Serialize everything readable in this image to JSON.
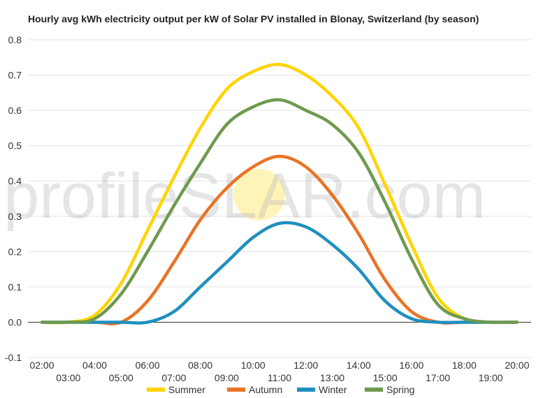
{
  "chart_data": {
    "type": "line",
    "title": "Hourly avg kWh electricity output per kW of Solar PV installed in Blonay, Switzerland (by season)",
    "xlabel": "",
    "ylabel": "",
    "x": [
      "02:00",
      "03:00",
      "04:00",
      "05:00",
      "06:00",
      "07:00",
      "08:00",
      "09:00",
      "10:00",
      "11:00",
      "12:00",
      "13:00",
      "14:00",
      "15:00",
      "16:00",
      "17:00",
      "18:00",
      "19:00",
      "20:00"
    ],
    "ylim": [
      -0.1,
      0.8
    ],
    "yticks": [
      -0.1,
      0.0,
      0.1,
      0.2,
      0.3,
      0.4,
      0.5,
      0.6,
      0.7,
      0.8
    ],
    "grid": true,
    "legend_position": "bottom",
    "series": [
      {
        "name": "Summer",
        "color": "#FFD400",
        "values": [
          0.0,
          0.0,
          0.02,
          0.11,
          0.26,
          0.41,
          0.55,
          0.66,
          0.71,
          0.73,
          0.7,
          0.64,
          0.55,
          0.39,
          0.22,
          0.07,
          0.01,
          0.0,
          0.0
        ]
      },
      {
        "name": "Autumn",
        "color": "#E97325",
        "values": [
          0.0,
          0.0,
          0.0,
          0.0,
          0.06,
          0.17,
          0.29,
          0.38,
          0.44,
          0.47,
          0.44,
          0.36,
          0.25,
          0.12,
          0.03,
          0.0,
          0.0,
          0.0,
          0.0
        ]
      },
      {
        "name": "Winter",
        "color": "#1F8FBF",
        "values": [
          0.0,
          0.0,
          0.0,
          0.0,
          0.0,
          0.03,
          0.1,
          0.17,
          0.24,
          0.28,
          0.27,
          0.22,
          0.15,
          0.06,
          0.01,
          0.0,
          0.0,
          0.0,
          0.0
        ]
      },
      {
        "name": "Spring",
        "color": "#6E9A4F",
        "values": [
          0.0,
          0.0,
          0.01,
          0.08,
          0.2,
          0.33,
          0.45,
          0.56,
          0.61,
          0.63,
          0.6,
          0.56,
          0.48,
          0.34,
          0.18,
          0.05,
          0.01,
          0.0,
          0.0
        ]
      }
    ]
  },
  "watermark": {
    "part1": "profile",
    "part2": "S",
    "part3": "LAR.com"
  },
  "colors": {
    "grid": "#e2e2e2",
    "zero_line": "#333333",
    "sun": "#fff4b8"
  }
}
